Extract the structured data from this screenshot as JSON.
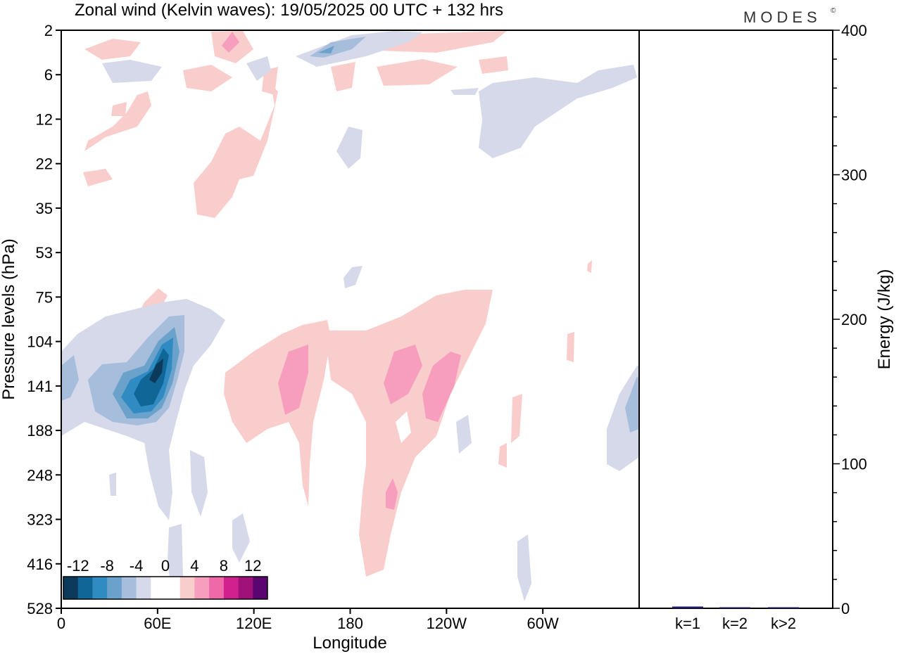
{
  "title": "Zonal wind (Kelvin waves):  19/05/2025  00 UTC  + 132 hrs",
  "logo": "MODES",
  "logo_mark": "©",
  "chart_data": [
    {
      "type": "heatmap",
      "xlabel": "Longitude",
      "ylabel": "Pressure levels (hPa)",
      "x_ticks": [
        {
          "lon": 0,
          "label": "0"
        },
        {
          "lon": 60,
          "label": "60E"
        },
        {
          "lon": 120,
          "label": "120E"
        },
        {
          "lon": 180,
          "label": "180"
        },
        {
          "lon": 240,
          "label": "120W"
        },
        {
          "lon": 300,
          "label": "60W"
        }
      ],
      "xlim": [
        0,
        360
      ],
      "y_levels": [
        "2",
        "6",
        "12",
        "22",
        "35",
        "53",
        "75",
        "104",
        "141",
        "188",
        "248",
        "323",
        "416",
        "528"
      ],
      "colorbar": {
        "labels": [
          "-12",
          "-8",
          "-4",
          "0",
          "4",
          "8",
          "12"
        ],
        "colors": [
          "#0c3a5b",
          "#106696",
          "#2f8bc2",
          "#6aa2cb",
          "#a6bddc",
          "#d6d9ea",
          "#ffffff",
          "#ffffff",
          "#f9cdcc",
          "#f79ebe",
          "#ef68a8",
          "#d2208f",
          "#a0127a",
          "#5b0570"
        ]
      },
      "features": [
        {
          "sign": "negative",
          "peak": -14,
          "lon": 60,
          "level": "141"
        },
        {
          "sign": "negative",
          "peak": -4,
          "lon": 0,
          "level": "141"
        },
        {
          "sign": "negative",
          "peak": -4,
          "lon": 355,
          "level": "141"
        },
        {
          "sign": "negative",
          "peak": -6,
          "lon": 165,
          "level": "2"
        },
        {
          "sign": "positive",
          "peak": 6,
          "lon": 145,
          "level": "141"
        },
        {
          "sign": "positive",
          "peak": 6,
          "lon": 205,
          "level": "141"
        },
        {
          "sign": "positive",
          "peak": 6,
          "lon": 235,
          "level": "141"
        },
        {
          "sign": "positive",
          "peak": 6,
          "lon": 205,
          "level": "248"
        }
      ]
    },
    {
      "type": "bar",
      "ylabel": "Energy (J/kg)",
      "ylim": [
        0,
        400
      ],
      "y_ticks": [
        "0",
        "100",
        "200",
        "300",
        "400"
      ],
      "categories": [
        "k=1",
        "k=2",
        "k>2"
      ],
      "values": [
        1.2,
        0.3,
        0.5
      ],
      "bar_color": "#1a1a6e"
    }
  ]
}
